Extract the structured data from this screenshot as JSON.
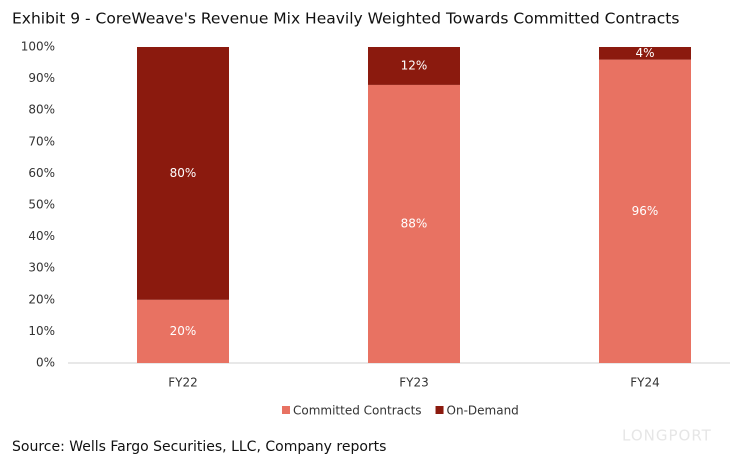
{
  "chart_data": {
    "type": "stacked_bar",
    "title": "Exhibit 9 - CoreWeave's Revenue Mix Heavily Weighted Towards Committed Contracts",
    "source": "Source: Wells Fargo Securities, LLC, Company reports",
    "watermark": "LONGPORT",
    "categories": [
      "FY22",
      "FY23",
      "FY24"
    ],
    "series": [
      {
        "name": "Committed Contracts",
        "color": "#e87262",
        "values": [
          20,
          88,
          96
        ],
        "value_labels": [
          "20%",
          "88%",
          "96%"
        ]
      },
      {
        "name": "On-Demand",
        "color": "#8b1a0e",
        "values": [
          80,
          12,
          4
        ],
        "value_labels": [
          "80%",
          "12%",
          "4%"
        ]
      }
    ],
    "ylim": [
      0,
      100
    ],
    "yticks": [
      {
        "value": 0,
        "label": "0%"
      },
      {
        "value": 10,
        "label": "10%"
      },
      {
        "value": 20,
        "label": "20%"
      },
      {
        "value": 30,
        "label": "30%"
      },
      {
        "value": 40,
        "label": "40%"
      },
      {
        "value": 50,
        "label": "50%"
      },
      {
        "value": 60,
        "label": "60%"
      },
      {
        "value": 70,
        "label": "70%"
      },
      {
        "value": 80,
        "label": "80%"
      },
      {
        "value": 90,
        "label": "90%"
      },
      {
        "value": 100,
        "label": "100%"
      }
    ],
    "grid": false,
    "legend": "bottom"
  }
}
